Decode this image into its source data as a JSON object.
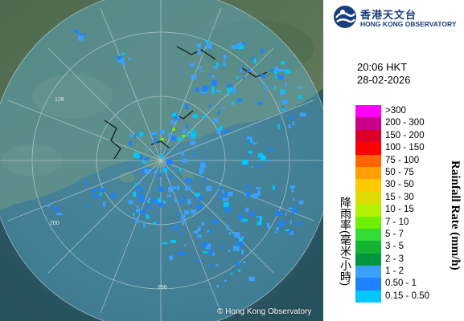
{
  "header": {
    "logo_cn": "香港天文台",
    "logo_en": "HONG KONG OBSERVATORY",
    "logo_icon": "hko-logo-icon"
  },
  "timestamp": {
    "time": "20:06 HKT",
    "date": "28-02-2026"
  },
  "legend": {
    "title_cn": "降雨率(毫米/小時)",
    "title_en": "Rainfall Rate (mm/h)",
    "items": [
      {
        "label": ">300",
        "color": "#ff00ff"
      },
      {
        "label": "200 - 300",
        "color": "#c8008c"
      },
      {
        "label": "150 - 200",
        "color": "#dc0028"
      },
      {
        "label": "100 - 150",
        "color": "#ff0000"
      },
      {
        "label": "75 - 100",
        "color": "#ff6400"
      },
      {
        "label": "50 - 75",
        "color": "#ffa000"
      },
      {
        "label": "30 - 50",
        "color": "#ffc800"
      },
      {
        "label": "15 - 30",
        "color": "#dcdc00"
      },
      {
        "label": "10 - 15",
        "color": "#b4f000"
      },
      {
        "label": "7 - 10",
        "color": "#6ef000"
      },
      {
        "label": "5 - 7",
        "color": "#32dc32"
      },
      {
        "label": "3 - 5",
        "color": "#14b432"
      },
      {
        "label": "2 - 3",
        "color": "#009640"
      },
      {
        "label": "1 - 2",
        "color": "#3ca0ff"
      },
      {
        "label": "0.50 - 1",
        "color": "#1e82ff"
      },
      {
        "label": "0.15 - 0.50",
        "color": "#00c8ff"
      }
    ]
  },
  "map": {
    "range_labels": [
      "128",
      "200",
      "256"
    ],
    "copyright": "© Hong Kong Observatory"
  }
}
